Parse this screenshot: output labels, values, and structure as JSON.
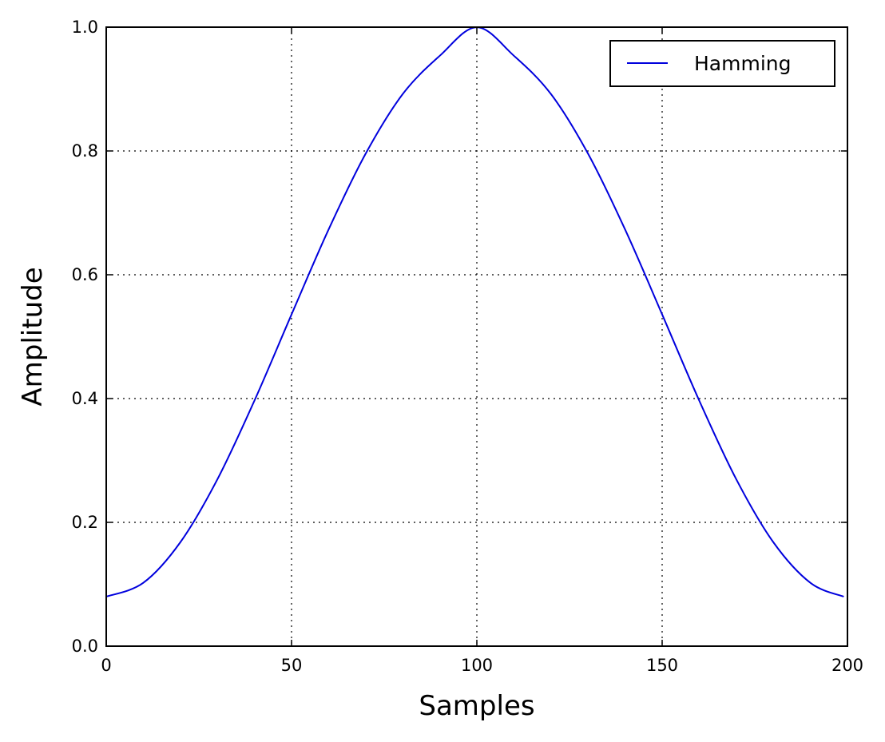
{
  "chart_data": {
    "type": "line",
    "title": "",
    "xlabel": "Samples",
    "ylabel": "Amplitude",
    "xlim": [
      0,
      200
    ],
    "ylim": [
      0.0,
      1.0
    ],
    "x_ticks": [
      "0",
      "50",
      "100",
      "150",
      "200"
    ],
    "y_ticks": [
      "0.0",
      "0.2",
      "0.4",
      "0.6",
      "0.8",
      "1.0"
    ],
    "grid": true,
    "grid_style": "dotted",
    "legend_position": "top-right",
    "series": [
      {
        "name": "Hamming",
        "color": "#0000dd",
        "x": [
          0,
          10,
          20,
          30,
          40,
          50,
          60,
          70,
          80,
          90,
          100,
          110,
          120,
          130,
          140,
          150,
          160,
          170,
          180,
          190,
          199
        ],
        "y": [
          0.08,
          0.1023,
          0.1679,
          0.2696,
          0.3968,
          0.5359,
          0.6731,
          0.7956,
          0.8919,
          0.9538,
          0.9999,
          0.9538,
          0.8919,
          0.7956,
          0.6731,
          0.5359,
          0.3968,
          0.2696,
          0.1679,
          0.1023,
          0.08
        ]
      }
    ]
  }
}
